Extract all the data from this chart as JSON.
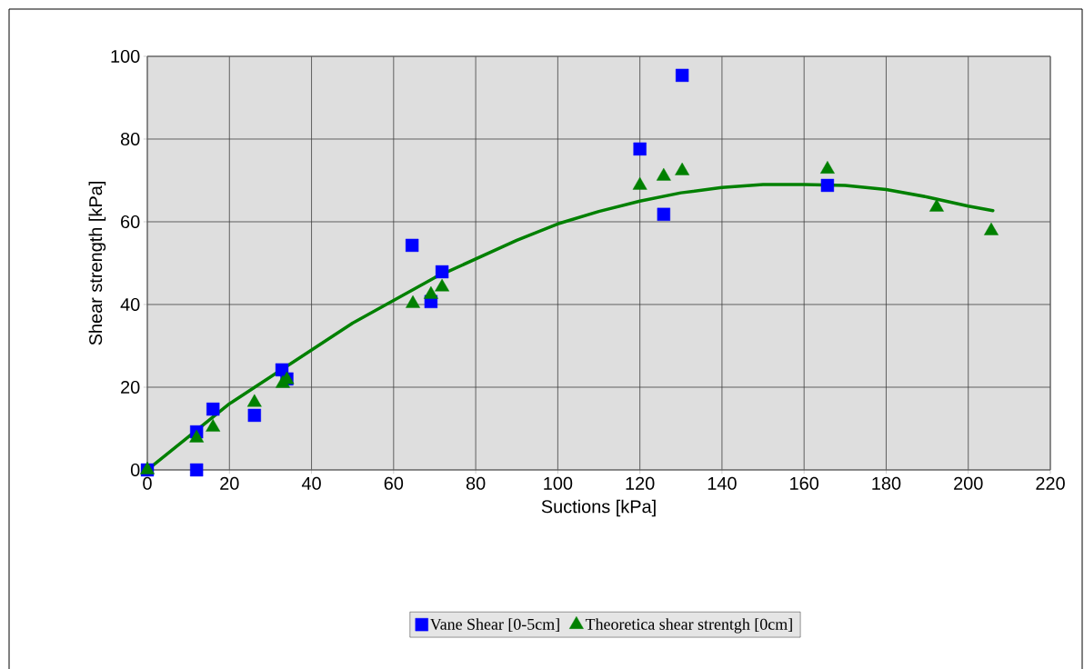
{
  "chart_data": {
    "type": "scatter",
    "xlabel": "Suctions [kPa]",
    "ylabel": "Shear strength [kPa]",
    "xlim": [
      0,
      220
    ],
    "ylim": [
      0,
      100
    ],
    "xticks": [
      0,
      20,
      40,
      60,
      80,
      100,
      120,
      140,
      160,
      180,
      200,
      220
    ],
    "yticks": [
      0,
      20,
      40,
      60,
      80,
      100
    ],
    "grid": true,
    "legend": "bottom",
    "series": [
      {
        "name": "Vane Shear [0-5cm]",
        "marker": "square",
        "color": "#0000ff",
        "x": [
          0,
          12,
          12,
          16,
          26.1,
          32.8,
          34,
          64.5,
          69.1,
          71.8,
          120,
          125.8,
          130.3,
          165.7
        ],
        "values": [
          0,
          9.2,
          0,
          14.7,
          13.2,
          24.2,
          22,
          54.3,
          40.7,
          47.9,
          77.6,
          61.8,
          95.4,
          68.8
        ]
      },
      {
        "name": "Theoretica shear strentgh [0cm]",
        "marker": "triangle",
        "color": "#008000",
        "x": [
          0,
          12,
          16,
          26.1,
          33,
          34,
          64.7,
          69.1,
          71.8,
          120,
          125.8,
          130.3,
          165.7,
          192.3,
          205.6
        ],
        "values": [
          0,
          7.7,
          10.3,
          16.3,
          20.9,
          21.8,
          40.2,
          42.4,
          44.2,
          68.8,
          71,
          72.3,
          72.7,
          63.5,
          57.8
        ]
      },
      {
        "type": "line",
        "marker": "none",
        "color": "#008000",
        "x": [
          0,
          10,
          20,
          30,
          40,
          50,
          60,
          70,
          80,
          90,
          100,
          110,
          120,
          130,
          140,
          150,
          160,
          170,
          180,
          190,
          200,
          206
        ],
        "values": [
          0,
          8,
          16,
          22.5,
          29,
          35.5,
          41,
          46.5,
          51,
          55.5,
          59.5,
          62.5,
          65,
          67,
          68.3,
          69,
          69,
          68.8,
          67.8,
          66,
          63.8,
          62.7
        ]
      }
    ]
  }
}
